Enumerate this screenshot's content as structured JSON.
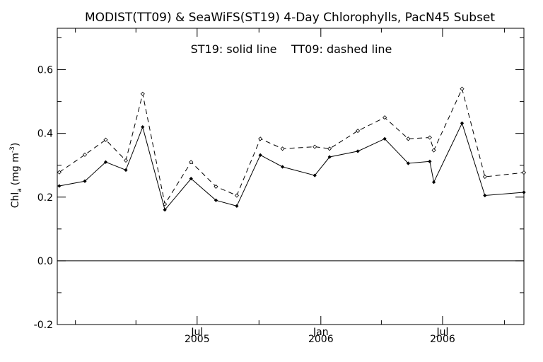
{
  "chart_data": {
    "type": "line",
    "title": "MODIST(TT09) & SeaWiFS(ST19) 4-Day Chlorophylls, PacN45 Subset",
    "annotation": "ST19: solid line    TT09: dashed line",
    "ylabel": "Chl",
    "ylabel_subscript": "a",
    "ylabel_units": "(mg m",
    "ylabel_units_sup": "-3",
    "ylabel_units_close": ")",
    "ylim": [
      -0.2,
      0.73
    ],
    "y_ticks": [
      -0.2,
      0.0,
      0.2,
      0.4,
      0.6
    ],
    "y_tick_labels": [
      "-0.2",
      "0.0",
      "0.2",
      "0.4",
      "0.6"
    ],
    "xlim": [
      "2004-12-05",
      "2006-10-30"
    ],
    "x_ticks": [
      {
        "date": "2005-07-01",
        "month": "Jul",
        "year": "2005"
      },
      {
        "date": "2006-01-01",
        "month": "Jan",
        "year": "2006"
      },
      {
        "date": "2006-07-01",
        "month": "Jul",
        "year": "2006"
      }
    ],
    "zero_line": 0.0,
    "x": [
      "2004-12-08",
      "2005-01-15",
      "2005-02-15",
      "2005-03-17",
      "2005-04-11",
      "2005-05-14",
      "2005-06-22",
      "2005-07-29",
      "2005-08-29",
      "2005-10-03",
      "2005-11-05",
      "2005-12-23",
      "2006-01-14",
      "2006-02-25",
      "2006-04-06",
      "2006-05-11",
      "2006-06-12",
      "2006-06-18",
      "2006-07-30",
      "2006-09-02",
      "2006-10-30"
    ],
    "series": [
      {
        "name": "ST19",
        "style": "solid",
        "color": "#000000",
        "values": [
          0.235,
          0.25,
          0.31,
          0.285,
          0.42,
          0.16,
          0.258,
          0.19,
          0.172,
          0.332,
          0.295,
          0.268,
          0.326,
          0.344,
          0.383,
          0.306,
          0.312,
          0.247,
          0.432,
          0.205,
          0.215
        ]
      },
      {
        "name": "TT09",
        "style": "dashed",
        "color": "#000000",
        "values": [
          0.278,
          0.333,
          0.38,
          0.315,
          0.524,
          0.178,
          0.31,
          0.233,
          0.205,
          0.383,
          0.352,
          0.358,
          0.352,
          0.408,
          0.45,
          0.383,
          0.387,
          0.347,
          0.54,
          0.264,
          0.277
        ]
      }
    ]
  }
}
